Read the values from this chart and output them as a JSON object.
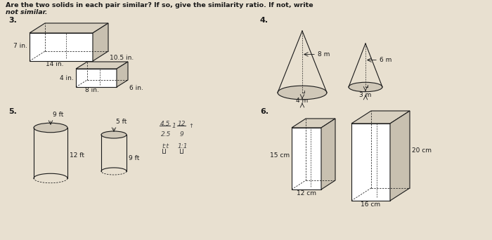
{
  "bg_color": "#e8e0d0",
  "text_color": "#1a1a1a",
  "title_line1": "Are the two solids in each pair similar? If so, give the similarity ratio. If not, write",
  "title_line2": "not similar.",
  "p3_label": "3.",
  "p4_label": "4.",
  "p5_label": "5.",
  "p6_label": "6.",
  "box1_labels": [
    "7 in.",
    "14 in.",
    "10.5 in."
  ],
  "box2_labels": [
    "4 in.",
    "8 in.",
    "6 in."
  ],
  "cone1_labels": [
    "8 m",
    "4 m"
  ],
  "cone2_labels": [
    "6 m",
    "3 m"
  ],
  "cyl1_labels": [
    "9 ft",
    "12 ft"
  ],
  "cyl2_labels": [
    "5 ft",
    "9 ft"
  ],
  "box3_labels": [
    "15 cm",
    "12 cm"
  ],
  "box4_labels": [
    "20 cm",
    "16 cm"
  ],
  "work_line1_left": "4.5",
  "work_line1_right": "12",
  "work_line2_left": "2.5",
  "work_line2_right": "9",
  "work_line3": "t:t",
  "work_line3b": "1:1"
}
